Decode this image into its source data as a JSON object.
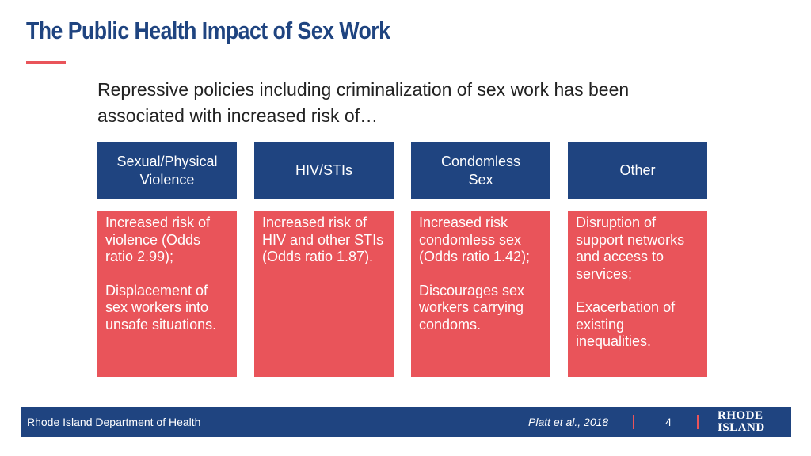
{
  "slide": {
    "title": "The Public Health Impact of Sex Work",
    "intro": "Repressive policies including criminalization of sex work has been associated with increased risk of…"
  },
  "columns": [
    {
      "header": "Sexual/Physical\nViolence",
      "points": [
        "Increased risk of violence (Odds ratio 2.99);",
        "Displacement of sex workers into unsafe situations."
      ]
    },
    {
      "header": "HIV/STIs",
      "points": [
        "Increased risk of HIV and other STIs (Odds ratio 1.87)."
      ]
    },
    {
      "header": "Condomless\nSex",
      "points": [
        "Increased risk condomless sex (Odds ratio 1.42);",
        "Discourages sex workers carrying condoms."
      ]
    },
    {
      "header": "Other",
      "points": [
        "Disruption of support networks and access to services;",
        "Exacerbation of existing inequalities."
      ]
    }
  ],
  "footer": {
    "organization": "Rhode Island Department of Health",
    "citation": "Platt et al., 2018",
    "page_number": "4",
    "logo_text": "RHODE\nISLAND"
  },
  "colors": {
    "navy": "#1f4480",
    "coral": "#e9545a",
    "text": "#222222"
  }
}
